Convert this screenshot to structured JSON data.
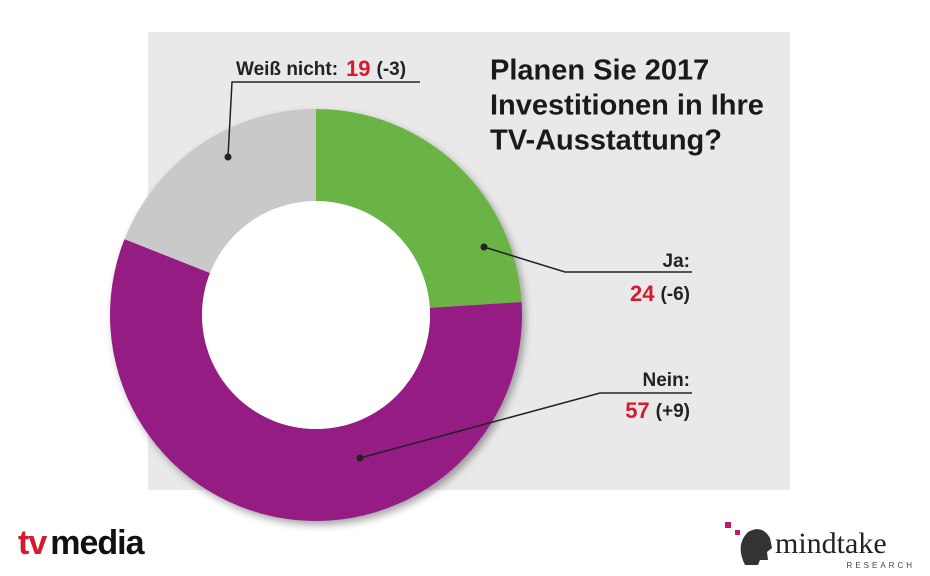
{
  "chart_data": {
    "type": "donut",
    "title": [
      "Planen Sie 2017",
      "Investitionen in Ihre",
      "TV-Ausstattung?"
    ],
    "categories": [
      "Ja:",
      "Nein:",
      "Weiß nicht:"
    ],
    "values": [
      24,
      57,
      19
    ],
    "change_labels": [
      "(-6)",
      "(+9)",
      "(-3)"
    ],
    "colors": [
      "#6ab445",
      "#951c83",
      "#c9c9c9"
    ]
  },
  "footer": {
    "left_logo": [
      "tv",
      "media"
    ],
    "right_logo": "mindtake",
    "right_sub": "RESEARCH"
  }
}
